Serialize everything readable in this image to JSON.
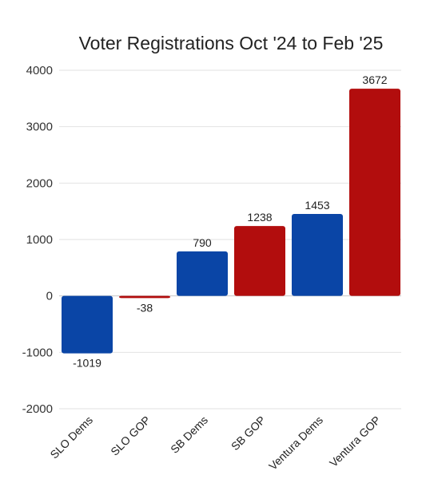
{
  "chart_data": {
    "type": "bar",
    "title": "Voter Registrations Oct '24 to Feb '25",
    "xlabel": "",
    "ylabel": "",
    "categories": [
      "SLO Dems",
      "SLO GOP",
      "SB Dems",
      "SB GOP",
      "Ventura Dems",
      "Ventura GOP"
    ],
    "values": [
      -1019,
      -38,
      790,
      1238,
      1453,
      3672
    ],
    "data_labels": [
      "-1019",
      "-38",
      "790",
      "1238",
      "1453",
      "3672"
    ],
    "bar_colors": [
      "#0a45a6",
      "#b20d0d",
      "#0a45a6",
      "#b20d0d",
      "#0a45a6",
      "#b20d0d"
    ],
    "ylim": [
      -2000,
      4000
    ],
    "yticks": [
      4000,
      3000,
      2000,
      1000,
      0,
      -1000,
      -2000
    ],
    "ytick_labels": [
      "4000",
      "3000",
      "2000",
      "1000",
      "0",
      "-1000",
      "-2000"
    ],
    "grid": true,
    "legend": "none"
  }
}
